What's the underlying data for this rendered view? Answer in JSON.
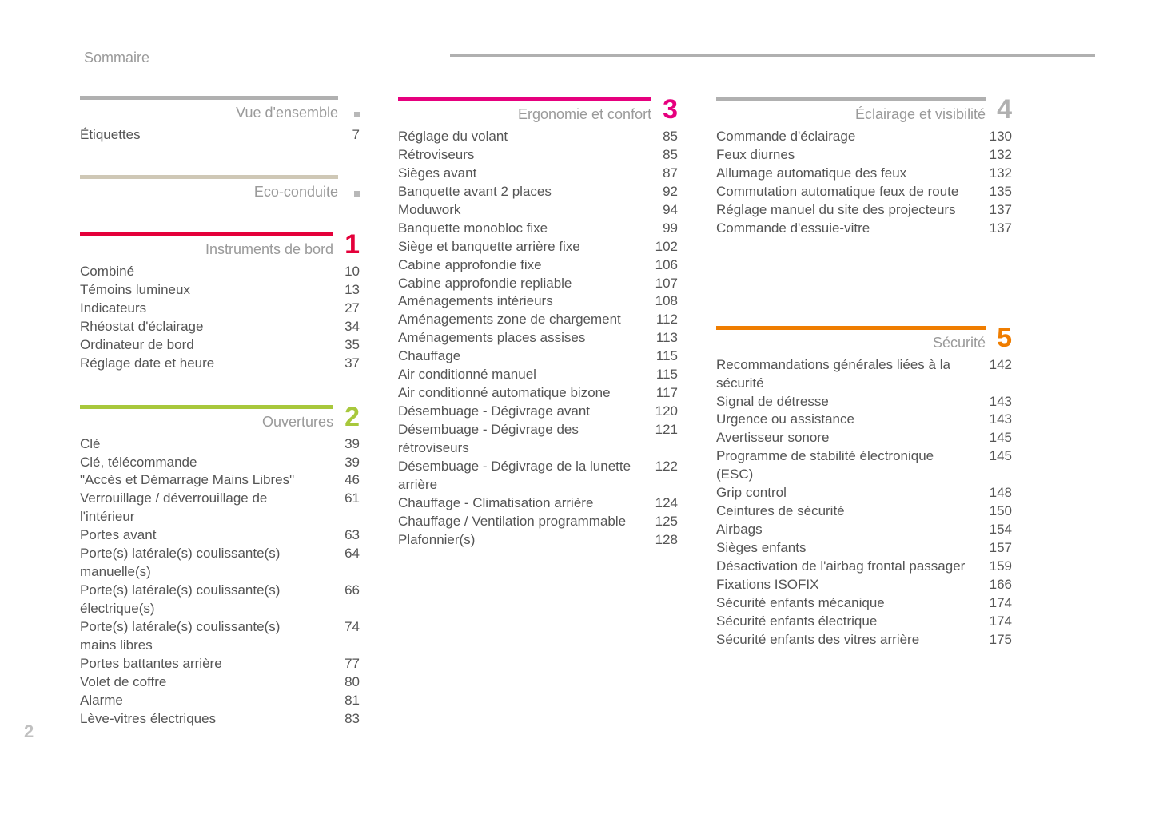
{
  "page": {
    "title": "Sommaire",
    "page_number": "2",
    "colors": {
      "top_rule": "#b0b0b0",
      "text_gray": "#9a9a9a",
      "body_text": "#555555",
      "page_num": "#c0c0c0"
    }
  },
  "sections": {
    "vue_ensemble": {
      "title": "Vue d'ensemble",
      "rule_color": "#b0b0b0",
      "num_color": "#9a9a9a",
      "items": [
        {
          "label": "Étiquettes",
          "page": "7"
        }
      ]
    },
    "eco_conduite": {
      "title": "Eco-conduite",
      "rule_color": "#cfc8b6",
      "num_color": "#9a9a9a",
      "items": []
    },
    "instruments": {
      "title": "Instruments de bord",
      "chapter": "1",
      "rule_color": "#e4003a",
      "num_color": "#e4003a",
      "items": [
        {
          "label": "Combiné",
          "page": "10"
        },
        {
          "label": "Témoins lumineux",
          "page": "13"
        },
        {
          "label": "Indicateurs",
          "page": "27"
        },
        {
          "label": "Rhéostat d'éclairage",
          "page": "34"
        },
        {
          "label": "Ordinateur de bord",
          "page": "35"
        },
        {
          "label": "Réglage date et heure",
          "page": "37"
        }
      ]
    },
    "ouvertures": {
      "title": "Ouvertures",
      "chapter": "2",
      "rule_color": "#a8c83c",
      "num_color": "#a8c83c",
      "items": [
        {
          "label": "Clé",
          "page": "39"
        },
        {
          "label": "Clé, télécommande",
          "page": "39"
        },
        {
          "label": "\"Accès et Démarrage Mains Libres\"",
          "page": "46"
        },
        {
          "label": "Verrouillage / déverrouillage de l'intérieur",
          "page": "61"
        },
        {
          "label": "Portes avant",
          "page": "63"
        },
        {
          "label": "Porte(s) latérale(s) coulissante(s) manuelle(s)",
          "page": "64"
        },
        {
          "label": "Porte(s) latérale(s) coulissante(s) électrique(s)",
          "page": "66"
        },
        {
          "label": "Porte(s) latérale(s) coulissante(s) mains libres",
          "page": "74"
        },
        {
          "label": "Portes battantes arrière",
          "page": "77"
        },
        {
          "label": "Volet de coffre",
          "page": "80"
        },
        {
          "label": "Alarme",
          "page": "81"
        },
        {
          "label": "Lève-vitres électriques",
          "page": "83"
        }
      ]
    },
    "ergonomie": {
      "title": "Ergonomie et confort",
      "chapter": "3",
      "rule_color": "#e6007e",
      "num_color": "#e6007e",
      "items": [
        {
          "label": "Réglage du volant",
          "page": "85"
        },
        {
          "label": "Rétroviseurs",
          "page": "85"
        },
        {
          "label": "Sièges avant",
          "page": "87"
        },
        {
          "label": "Banquette avant 2 places",
          "page": "92"
        },
        {
          "label": "Moduwork",
          "page": "94"
        },
        {
          "label": "Banquette monobloc fixe",
          "page": "99"
        },
        {
          "label": "Siège et banquette arrière fixe",
          "page": "102"
        },
        {
          "label": "Cabine approfondie fixe",
          "page": "106"
        },
        {
          "label": "Cabine approfondie repliable",
          "page": "107"
        },
        {
          "label": "Aménagements intérieurs",
          "page": "108"
        },
        {
          "label": "Aménagements zone de chargement",
          "page": "112"
        },
        {
          "label": "Aménagements places assises",
          "page": "113"
        },
        {
          "label": "Chauffage",
          "page": "115"
        },
        {
          "label": "Air conditionné manuel",
          "page": "115"
        },
        {
          "label": "Air conditionné automatique bizone",
          "page": "117"
        },
        {
          "label": "Désembuage - Dégivrage avant",
          "page": "120"
        },
        {
          "label": "Désembuage - Dégivrage des rétroviseurs",
          "page": "121"
        },
        {
          "label": "Désembuage - Dégivrage de la lunette arrière",
          "page": "122"
        },
        {
          "label": "Chauffage - Climatisation arrière",
          "page": "124"
        },
        {
          "label": "Chauffage / Ventilation programmable",
          "page": "125"
        },
        {
          "label": "Plafonnier(s)",
          "page": "128"
        }
      ]
    },
    "eclairage": {
      "title": "Éclairage et visibilité",
      "chapter": "4",
      "rule_color": "#b0b0b0",
      "num_color": "#b0b0b0",
      "items": [
        {
          "label": "Commande d'éclairage",
          "page": "130"
        },
        {
          "label": "Feux diurnes",
          "page": "132"
        },
        {
          "label": "Allumage automatique des feux",
          "page": "132"
        },
        {
          "label": "Commutation automatique feux de route",
          "page": "135"
        },
        {
          "label": "Réglage manuel du site des projecteurs",
          "page": "137"
        },
        {
          "label": "Commande d'essuie-vitre",
          "page": "137"
        }
      ]
    },
    "securite": {
      "title": "Sécurité",
      "chapter": "5",
      "rule_color": "#ef7d00",
      "num_color": "#ef7d00",
      "items": [
        {
          "label": "Recommandations générales liées à la sécurité",
          "page": "142"
        },
        {
          "label": "Signal de détresse",
          "page": "143"
        },
        {
          "label": "Urgence ou assistance",
          "page": "143"
        },
        {
          "label": "Avertisseur sonore",
          "page": "145"
        },
        {
          "label": "Programme de stabilité électronique (ESC)",
          "page": "145"
        },
        {
          "label": "Grip control",
          "page": "148"
        },
        {
          "label": "Ceintures de sécurité",
          "page": "150"
        },
        {
          "label": "Airbags",
          "page": "154"
        },
        {
          "label": "Sièges enfants",
          "page": "157"
        },
        {
          "label": "Désactivation de l'airbag frontal passager",
          "page": "159"
        },
        {
          "label": "Fixations ISOFIX",
          "page": "166"
        },
        {
          "label": "Sécurité enfants mécanique",
          "page": "174"
        },
        {
          "label": "Sécurité enfants électrique",
          "page": "174"
        },
        {
          "label": "Sécurité enfants des vitres arrière",
          "page": "175"
        }
      ]
    }
  }
}
